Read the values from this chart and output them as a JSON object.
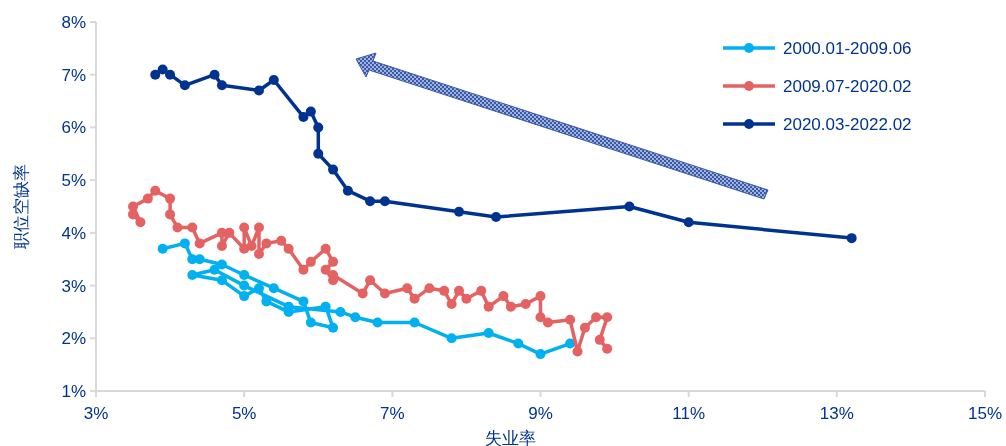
{
  "chart_data": {
    "type": "line",
    "xlabel": "失业率",
    "ylabel": "职位空缺率",
    "marker": "circle",
    "legend": "top right",
    "grid": false,
    "xlim": [
      3,
      15
    ],
    "xticks": [
      {
        "value": 3,
        "label": "3%"
      },
      {
        "value": 5,
        "label": "5%"
      },
      {
        "value": 7,
        "label": "7%"
      },
      {
        "value": 9,
        "label": "9%"
      },
      {
        "value": 11,
        "label": "11%"
      },
      {
        "value": 13,
        "label": "13%"
      },
      {
        "value": 15,
        "label": "15%"
      }
    ],
    "ylim": [
      1,
      8
    ],
    "yticks": [
      {
        "value": 1,
        "label": "1%"
      },
      {
        "value": 2,
        "label": "2%"
      },
      {
        "value": 3,
        "label": "3%"
      },
      {
        "value": 4,
        "label": "4%"
      },
      {
        "value": 5,
        "label": "5%"
      },
      {
        "value": 6,
        "label": "6%"
      },
      {
        "value": 7,
        "label": "7%"
      },
      {
        "value": 8,
        "label": "8%"
      }
    ],
    "series": [
      {
        "name": "2000.01-2009.06",
        "color": "#00b0f0",
        "x": [
          3.9,
          4.2,
          4.3,
          4.4,
          4.7,
          5.0,
          5.4,
          5.8,
          5.9,
          6.2,
          6.1,
          5.6,
          5.3,
          5.2,
          5.0,
          4.7,
          4.3,
          4.6,
          5.0,
          5.6,
          6.3,
          6.5,
          6.8,
          7.3,
          7.8,
          8.3,
          8.7,
          9.0,
          9.4
        ],
        "values": [
          3.7,
          3.8,
          3.5,
          3.5,
          3.4,
          3.2,
          2.95,
          2.7,
          2.3,
          2.2,
          2.6,
          2.5,
          2.7,
          2.95,
          2.8,
          3.1,
          3.2,
          3.3,
          3.0,
          2.6,
          2.5,
          2.4,
          2.3,
          2.3,
          2.0,
          2.1,
          1.9,
          1.7,
          1.9
        ]
      },
      {
        "name": "2009.07-2020.02",
        "color": "#e46262",
        "x": [
          9.9,
          9.8,
          9.9,
          9.75,
          9.6,
          9.5,
          9.4,
          9.1,
          9.0,
          9.0,
          8.8,
          8.6,
          8.5,
          8.3,
          8.2,
          8.0,
          7.9,
          7.8,
          7.7,
          7.5,
          7.3,
          7.2,
          6.9,
          6.7,
          6.6,
          6.2,
          6.2,
          6.1,
          6.2,
          6.1,
          5.9,
          5.8,
          5.6,
          5.5,
          5.3,
          5.2,
          5.2,
          5.1,
          5.0,
          5.0,
          4.8,
          4.7,
          4.7,
          4.4,
          4.3,
          4.1,
          4.0,
          4.0,
          3.8,
          3.7,
          3.5,
          3.6,
          3.5
        ],
        "values": [
          1.8,
          1.97,
          2.4,
          2.4,
          2.2,
          1.75,
          2.35,
          2.3,
          2.4,
          2.8,
          2.65,
          2.6,
          2.8,
          2.6,
          2.9,
          2.75,
          2.9,
          2.65,
          2.9,
          2.95,
          2.75,
          2.95,
          2.85,
          3.1,
          2.85,
          3.2,
          3.1,
          3.3,
          3.45,
          3.7,
          3.45,
          3.3,
          3.7,
          3.85,
          3.8,
          3.6,
          4.1,
          3.75,
          4.1,
          3.7,
          4.0,
          3.75,
          4.0,
          3.8,
          4.1,
          4.1,
          4.35,
          4.65,
          4.8,
          4.65,
          4.5,
          4.2,
          4.35
        ]
      },
      {
        "name": "2020.03-2022.02",
        "color": "#00338f",
        "x": [
          13.2,
          11.0,
          10.2,
          8.4,
          7.9,
          6.9,
          6.7,
          6.4,
          6.2,
          6.0,
          6.0,
          5.9,
          5.8,
          5.4,
          5.2,
          4.7,
          4.6,
          4.2,
          4.0,
          3.9,
          3.8
        ],
        "values": [
          3.9,
          4.2,
          4.5,
          4.3,
          4.4,
          4.6,
          4.6,
          4.8,
          5.2,
          5.5,
          6.0,
          6.3,
          6.2,
          6.9,
          6.7,
          6.8,
          7.0,
          6.8,
          7.0,
          7.1,
          7.0
        ]
      }
    ]
  }
}
